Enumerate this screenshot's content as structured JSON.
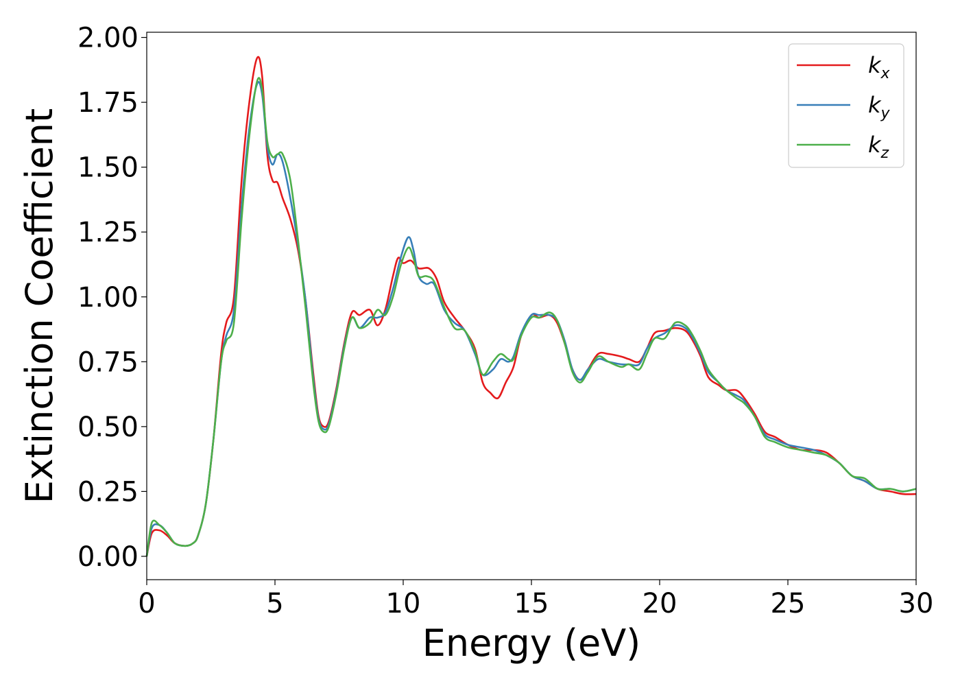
{
  "chart_data": {
    "type": "line",
    "xlabel": "Energy (eV)",
    "ylabel": "Extinction Coefficient",
    "xlim": [
      0,
      30
    ],
    "ylim": [
      -0.09,
      2.02
    ],
    "xticks": [
      0,
      5,
      10,
      15,
      20,
      25,
      30
    ],
    "yticks": [
      0.0,
      0.25,
      0.5,
      0.75,
      1.0,
      1.25,
      1.5,
      1.75,
      2.0
    ],
    "xtick_labels": [
      "0",
      "5",
      "10",
      "15",
      "20",
      "25",
      "30"
    ],
    "ytick_labels": [
      "0.00",
      "0.25",
      "0.50",
      "0.75",
      "1.00",
      "1.25",
      "1.50",
      "1.75",
      "2.00"
    ],
    "grid": false,
    "legend_position": "top-right",
    "series": [
      {
        "name": "k_x",
        "label_base": "k",
        "label_sub": "x",
        "color": "#e41a1c",
        "points": [
          [
            0,
            0
          ],
          [
            0.2,
            0.09
          ],
          [
            0.5,
            0.1
          ],
          [
            0.8,
            0.08
          ],
          [
            1.1,
            0.05
          ],
          [
            1.5,
            0.04
          ],
          [
            1.8,
            0.05
          ],
          [
            2.0,
            0.08
          ],
          [
            2.3,
            0.2
          ],
          [
            2.6,
            0.45
          ],
          [
            2.9,
            0.78
          ],
          [
            3.1,
            0.9
          ],
          [
            3.4,
            1.0
          ],
          [
            3.7,
            1.45
          ],
          [
            4.0,
            1.75
          ],
          [
            4.3,
            1.92
          ],
          [
            4.5,
            1.85
          ],
          [
            4.7,
            1.55
          ],
          [
            4.9,
            1.45
          ],
          [
            5.1,
            1.44
          ],
          [
            5.3,
            1.38
          ],
          [
            5.6,
            1.3
          ],
          [
            5.9,
            1.18
          ],
          [
            6.2,
            0.98
          ],
          [
            6.5,
            0.7
          ],
          [
            6.7,
            0.54
          ],
          [
            6.9,
            0.5
          ],
          [
            7.1,
            0.52
          ],
          [
            7.4,
            0.65
          ],
          [
            7.7,
            0.82
          ],
          [
            8.0,
            0.94
          ],
          [
            8.3,
            0.93
          ],
          [
            8.7,
            0.95
          ],
          [
            9.0,
            0.89
          ],
          [
            9.3,
            0.95
          ],
          [
            9.6,
            1.08
          ],
          [
            9.8,
            1.15
          ],
          [
            10.0,
            1.13
          ],
          [
            10.3,
            1.14
          ],
          [
            10.6,
            1.11
          ],
          [
            11.0,
            1.11
          ],
          [
            11.3,
            1.07
          ],
          [
            11.6,
            0.98
          ],
          [
            12.0,
            0.92
          ],
          [
            12.4,
            0.87
          ],
          [
            12.8,
            0.8
          ],
          [
            13.1,
            0.67
          ],
          [
            13.4,
            0.63
          ],
          [
            13.7,
            0.61
          ],
          [
            14.0,
            0.67
          ],
          [
            14.3,
            0.73
          ],
          [
            14.6,
            0.85
          ],
          [
            15.0,
            0.93
          ],
          [
            15.3,
            0.92
          ],
          [
            15.7,
            0.93
          ],
          [
            16.0,
            0.9
          ],
          [
            16.3,
            0.82
          ],
          [
            16.6,
            0.72
          ],
          [
            16.9,
            0.68
          ],
          [
            17.2,
            0.72
          ],
          [
            17.6,
            0.78
          ],
          [
            18.0,
            0.78
          ],
          [
            18.5,
            0.77
          ],
          [
            18.8,
            0.76
          ],
          [
            19.2,
            0.75
          ],
          [
            19.5,
            0.8
          ],
          [
            19.8,
            0.86
          ],
          [
            20.2,
            0.87
          ],
          [
            20.6,
            0.88
          ],
          [
            21.0,
            0.87
          ],
          [
            21.3,
            0.83
          ],
          [
            21.6,
            0.77
          ],
          [
            21.9,
            0.69
          ],
          [
            22.3,
            0.66
          ],
          [
            22.6,
            0.64
          ],
          [
            23.0,
            0.64
          ],
          [
            23.3,
            0.61
          ],
          [
            23.7,
            0.55
          ],
          [
            24.1,
            0.48
          ],
          [
            24.5,
            0.46
          ],
          [
            25.0,
            0.43
          ],
          [
            25.5,
            0.41
          ],
          [
            26.0,
            0.41
          ],
          [
            26.5,
            0.4
          ],
          [
            27.0,
            0.36
          ],
          [
            27.5,
            0.31
          ],
          [
            28.0,
            0.29
          ],
          [
            28.5,
            0.26
          ],
          [
            29.0,
            0.25
          ],
          [
            29.5,
            0.24
          ],
          [
            30.0,
            0.24
          ]
        ]
      },
      {
        "name": "k_y",
        "label_base": "k",
        "label_sub": "y",
        "color": "#377eb8",
        "points": [
          [
            0,
            0
          ],
          [
            0.2,
            0.11
          ],
          [
            0.5,
            0.12
          ],
          [
            0.8,
            0.09
          ],
          [
            1.1,
            0.05
          ],
          [
            1.5,
            0.04
          ],
          [
            1.8,
            0.05
          ],
          [
            2.0,
            0.08
          ],
          [
            2.3,
            0.2
          ],
          [
            2.6,
            0.45
          ],
          [
            2.9,
            0.75
          ],
          [
            3.1,
            0.85
          ],
          [
            3.4,
            0.95
          ],
          [
            3.7,
            1.35
          ],
          [
            4.0,
            1.65
          ],
          [
            4.3,
            1.82
          ],
          [
            4.5,
            1.78
          ],
          [
            4.7,
            1.58
          ],
          [
            4.9,
            1.51
          ],
          [
            5.1,
            1.55
          ],
          [
            5.3,
            1.52
          ],
          [
            5.6,
            1.38
          ],
          [
            5.9,
            1.2
          ],
          [
            6.2,
            0.98
          ],
          [
            6.5,
            0.68
          ],
          [
            6.7,
            0.53
          ],
          [
            6.9,
            0.49
          ],
          [
            7.1,
            0.51
          ],
          [
            7.4,
            0.64
          ],
          [
            7.7,
            0.81
          ],
          [
            8.0,
            0.92
          ],
          [
            8.3,
            0.88
          ],
          [
            8.7,
            0.92
          ],
          [
            9.0,
            0.92
          ],
          [
            9.3,
            0.94
          ],
          [
            9.6,
            1.03
          ],
          [
            9.9,
            1.15
          ],
          [
            10.2,
            1.23
          ],
          [
            10.4,
            1.18
          ],
          [
            10.6,
            1.08
          ],
          [
            10.9,
            1.05
          ],
          [
            11.2,
            1.05
          ],
          [
            11.6,
            0.95
          ],
          [
            12.0,
            0.9
          ],
          [
            12.4,
            0.87
          ],
          [
            12.8,
            0.78
          ],
          [
            13.1,
            0.7
          ],
          [
            13.5,
            0.72
          ],
          [
            13.8,
            0.76
          ],
          [
            14.1,
            0.75
          ],
          [
            14.3,
            0.77
          ],
          [
            14.6,
            0.86
          ],
          [
            15.0,
            0.93
          ],
          [
            15.3,
            0.93
          ],
          [
            15.7,
            0.93
          ],
          [
            16.0,
            0.91
          ],
          [
            16.3,
            0.83
          ],
          [
            16.6,
            0.72
          ],
          [
            16.9,
            0.68
          ],
          [
            17.2,
            0.72
          ],
          [
            17.6,
            0.76
          ],
          [
            18.0,
            0.75
          ],
          [
            18.5,
            0.74
          ],
          [
            18.8,
            0.74
          ],
          [
            19.2,
            0.74
          ],
          [
            19.5,
            0.8
          ],
          [
            19.8,
            0.84
          ],
          [
            20.2,
            0.86
          ],
          [
            20.6,
            0.89
          ],
          [
            21.0,
            0.88
          ],
          [
            21.3,
            0.84
          ],
          [
            21.6,
            0.78
          ],
          [
            21.9,
            0.71
          ],
          [
            22.3,
            0.67
          ],
          [
            22.6,
            0.64
          ],
          [
            23.0,
            0.62
          ],
          [
            23.3,
            0.6
          ],
          [
            23.7,
            0.54
          ],
          [
            24.1,
            0.47
          ],
          [
            24.5,
            0.45
          ],
          [
            25.0,
            0.43
          ],
          [
            25.5,
            0.42
          ],
          [
            26.0,
            0.41
          ],
          [
            26.5,
            0.39
          ],
          [
            27.0,
            0.36
          ],
          [
            27.5,
            0.31
          ],
          [
            28.0,
            0.29
          ],
          [
            28.5,
            0.26
          ],
          [
            29.0,
            0.26
          ],
          [
            29.5,
            0.25
          ],
          [
            30.0,
            0.26
          ]
        ]
      },
      {
        "name": "k_z",
        "label_base": "k",
        "label_sub": "z",
        "color": "#4daf4a",
        "points": [
          [
            0,
            0
          ],
          [
            0.2,
            0.13
          ],
          [
            0.5,
            0.12
          ],
          [
            0.8,
            0.09
          ],
          [
            1.1,
            0.05
          ],
          [
            1.5,
            0.04
          ],
          [
            1.8,
            0.05
          ],
          [
            2.0,
            0.08
          ],
          [
            2.3,
            0.2
          ],
          [
            2.6,
            0.45
          ],
          [
            2.9,
            0.75
          ],
          [
            3.1,
            0.83
          ],
          [
            3.4,
            0.9
          ],
          [
            3.7,
            1.3
          ],
          [
            4.0,
            1.62
          ],
          [
            4.3,
            1.83
          ],
          [
            4.5,
            1.8
          ],
          [
            4.7,
            1.6
          ],
          [
            4.9,
            1.54
          ],
          [
            5.1,
            1.55
          ],
          [
            5.3,
            1.55
          ],
          [
            5.6,
            1.45
          ],
          [
            5.9,
            1.22
          ],
          [
            6.2,
            0.95
          ],
          [
            6.5,
            0.66
          ],
          [
            6.7,
            0.52
          ],
          [
            6.9,
            0.48
          ],
          [
            7.1,
            0.5
          ],
          [
            7.4,
            0.63
          ],
          [
            7.7,
            0.8
          ],
          [
            8.0,
            0.92
          ],
          [
            8.3,
            0.88
          ],
          [
            8.7,
            0.9
          ],
          [
            9.0,
            0.95
          ],
          [
            9.3,
            0.93
          ],
          [
            9.6,
            1.0
          ],
          [
            9.9,
            1.12
          ],
          [
            10.2,
            1.19
          ],
          [
            10.4,
            1.15
          ],
          [
            10.6,
            1.08
          ],
          [
            10.9,
            1.08
          ],
          [
            11.2,
            1.06
          ],
          [
            11.6,
            0.96
          ],
          [
            12.0,
            0.88
          ],
          [
            12.4,
            0.87
          ],
          [
            12.8,
            0.79
          ],
          [
            13.1,
            0.7
          ],
          [
            13.5,
            0.75
          ],
          [
            13.8,
            0.78
          ],
          [
            14.1,
            0.76
          ],
          [
            14.3,
            0.76
          ],
          [
            14.6,
            0.85
          ],
          [
            15.0,
            0.92
          ],
          [
            15.3,
            0.92
          ],
          [
            15.7,
            0.94
          ],
          [
            16.0,
            0.91
          ],
          [
            16.3,
            0.82
          ],
          [
            16.6,
            0.71
          ],
          [
            16.9,
            0.67
          ],
          [
            17.2,
            0.71
          ],
          [
            17.6,
            0.77
          ],
          [
            18.0,
            0.75
          ],
          [
            18.5,
            0.73
          ],
          [
            18.8,
            0.74
          ],
          [
            19.2,
            0.72
          ],
          [
            19.5,
            0.78
          ],
          [
            19.8,
            0.84
          ],
          [
            20.2,
            0.84
          ],
          [
            20.6,
            0.9
          ],
          [
            21.0,
            0.89
          ],
          [
            21.3,
            0.85
          ],
          [
            21.6,
            0.79
          ],
          [
            21.9,
            0.72
          ],
          [
            22.3,
            0.67
          ],
          [
            22.6,
            0.64
          ],
          [
            23.0,
            0.61
          ],
          [
            23.3,
            0.59
          ],
          [
            23.7,
            0.54
          ],
          [
            24.1,
            0.46
          ],
          [
            24.5,
            0.44
          ],
          [
            25.0,
            0.42
          ],
          [
            25.5,
            0.41
          ],
          [
            26.0,
            0.4
          ],
          [
            26.5,
            0.39
          ],
          [
            27.0,
            0.36
          ],
          [
            27.5,
            0.31
          ],
          [
            28.0,
            0.3
          ],
          [
            28.5,
            0.26
          ],
          [
            29.0,
            0.26
          ],
          [
            29.5,
            0.25
          ],
          [
            30.0,
            0.26
          ]
        ]
      }
    ]
  }
}
